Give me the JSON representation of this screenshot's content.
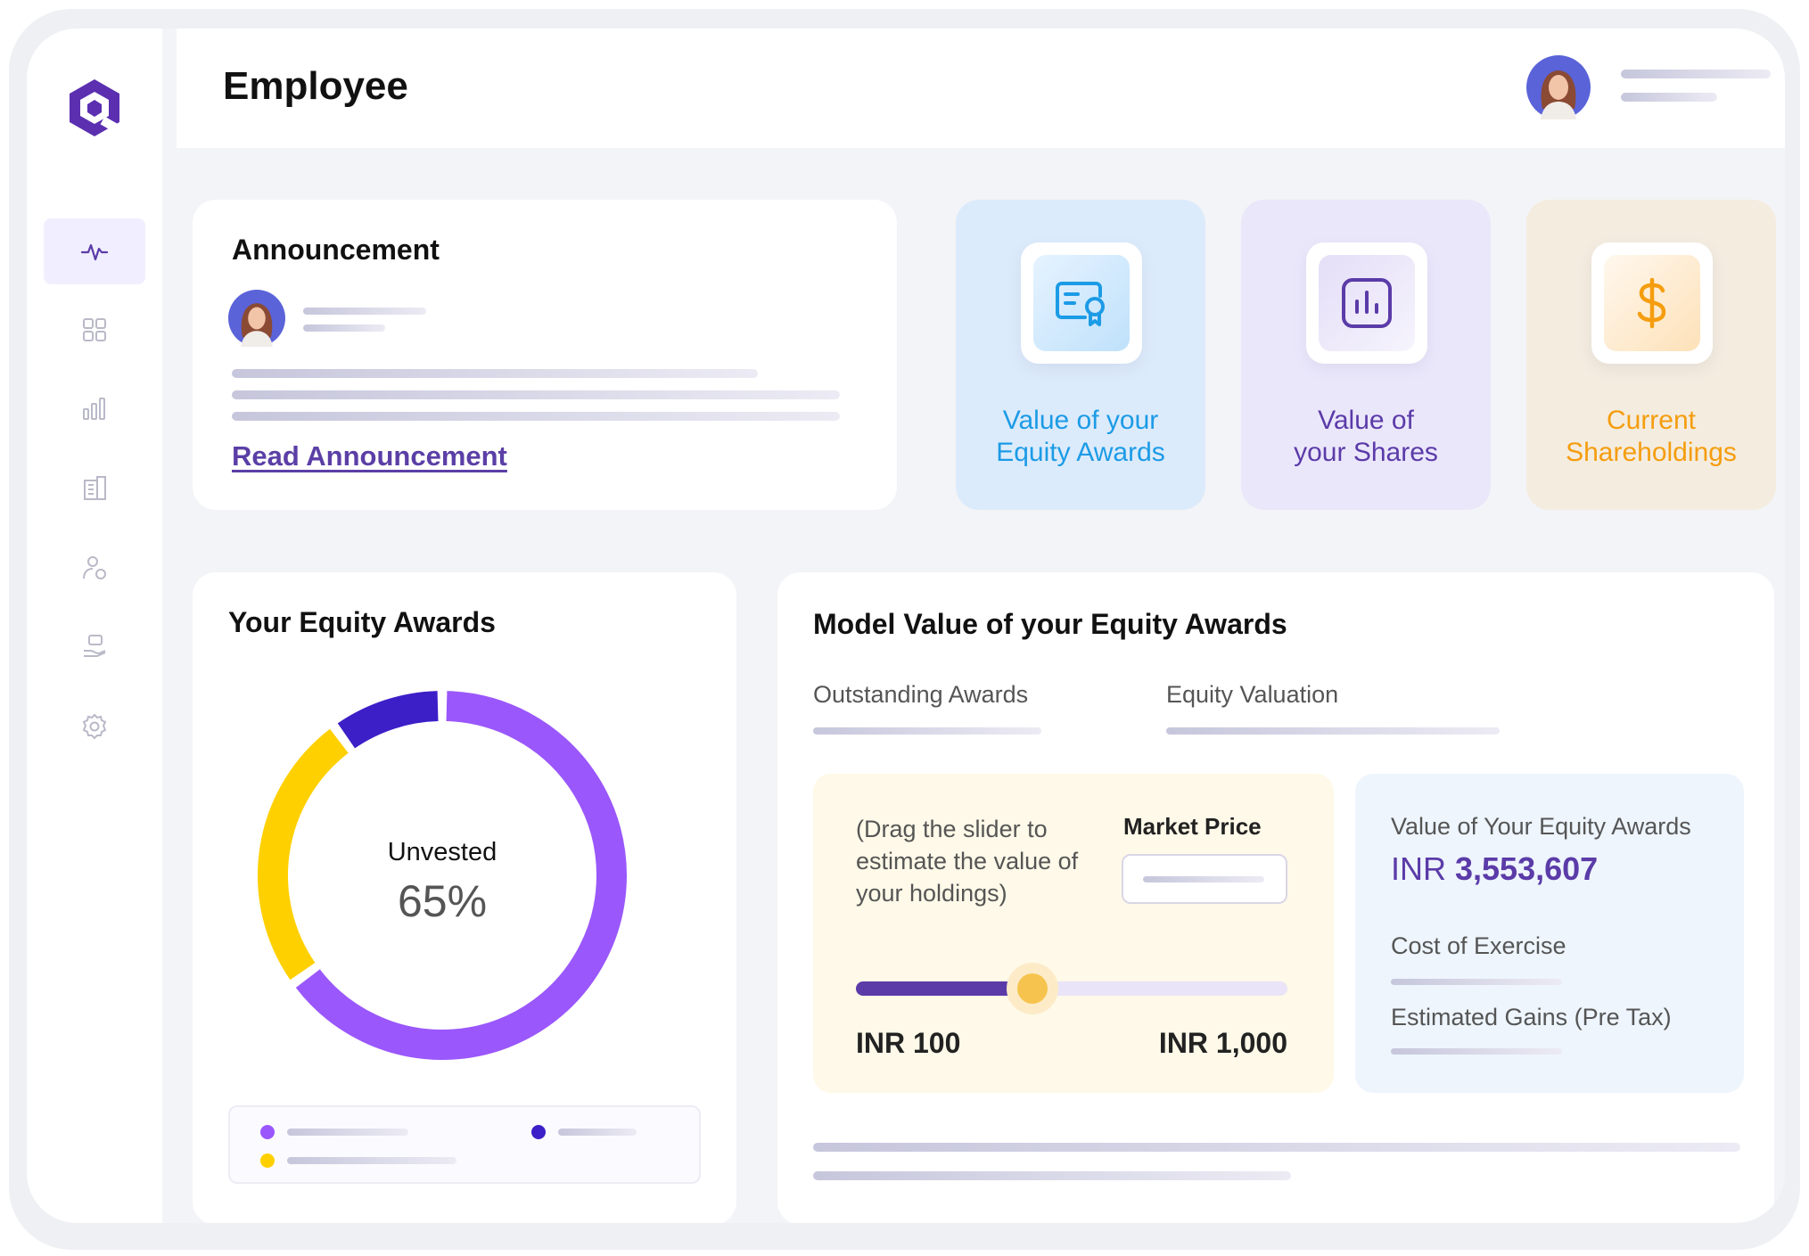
{
  "header": {
    "title": "Employee"
  },
  "announcement": {
    "title": "Announcement",
    "link_label": "Read Announcement"
  },
  "tiles": [
    {
      "label": "Value of your\nEquity Awards",
      "icon": "certificate-icon",
      "color": "#1c9be6"
    },
    {
      "label": "Value of\nyour Shares",
      "icon": "bar-chart-icon",
      "color": "#5b3ba8"
    },
    {
      "label": "Current\nShareholdings",
      "icon": "dollar-icon",
      "color": "#f59d0e"
    }
  ],
  "equity_awards": {
    "title": "Your Equity Awards",
    "center_label": "Unvested",
    "center_value": "65%",
    "segments": [
      {
        "color": "#9a57fb",
        "percent": 65
      },
      {
        "color": "#ffd000",
        "percent": 25
      },
      {
        "color": "#3d1fc8",
        "percent": 10
      }
    ]
  },
  "model": {
    "title": "Model Value of your Equity Awards",
    "tabs": [
      "Outstanding Awards",
      "Equity Valuation"
    ],
    "slider_hint": "(Drag the slider to estimate the value of your holdings)",
    "market_price_label": "Market Price",
    "min_label": "INR 100",
    "max_label": "INR 1,000",
    "slider_fraction": 0.41,
    "value_label": "Value of Your Equity Awards",
    "currency": "INR",
    "value_amount": "3,553,607",
    "cost_label": "Cost of Exercise",
    "gains_label": "Estimated Gains (Pre Tax)"
  },
  "colors": {
    "accent": "#5b3ba8",
    "brand": "#6a3fc0"
  }
}
